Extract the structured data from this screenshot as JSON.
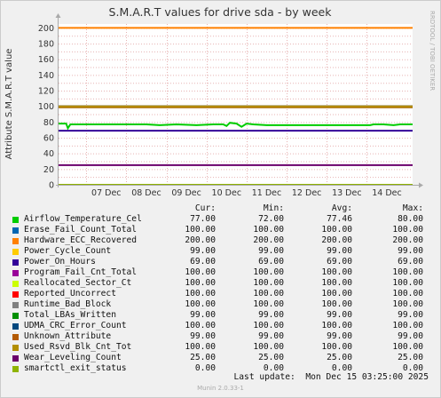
{
  "chart_data": {
    "type": "line",
    "title": "S.M.A.R.T values for drive sda - by week",
    "ylabel": "Attribute S.M.A.R.T value",
    "ylim": [
      0,
      205
    ],
    "yticks": [
      "0",
      "20",
      "40",
      "60",
      "80",
      "100",
      "120",
      "140",
      "160",
      "180",
      "200"
    ],
    "ytick_values": [
      0,
      20,
      40,
      60,
      80,
      100,
      120,
      140,
      160,
      180,
      200
    ],
    "xlim": [
      "2025-12-06 07:25",
      "2025-12-15 03:25"
    ],
    "xticks": [
      {
        "label": "07 Dec",
        "date": "2025-12-07"
      },
      {
        "label": "08 Dec",
        "date": "2025-12-08"
      },
      {
        "label": "09 Dec",
        "date": "2025-12-09"
      },
      {
        "label": "10 Dec",
        "date": "2025-12-10"
      },
      {
        "label": "11 Dec",
        "date": "2025-12-11"
      },
      {
        "label": "12 Dec",
        "date": "2025-12-12"
      },
      {
        "label": "13 Dec",
        "date": "2025-12-13"
      },
      {
        "label": "14 Dec",
        "date": "2025-12-14"
      }
    ],
    "grid": true,
    "legend_position": "bottom",
    "series": [
      {
        "name": "Airflow_Temperature_Cel",
        "color": "#00cc00",
        "points": [
          [
            "2025-12-06 07:25",
            78
          ],
          [
            "2025-12-06 12:00",
            78
          ],
          [
            "2025-12-06 13:00",
            72
          ],
          [
            "2025-12-06 14:30",
            77
          ],
          [
            "2025-12-07 12:00",
            77
          ],
          [
            "2025-12-08 12:00",
            77
          ],
          [
            "2025-12-08 20:00",
            76
          ],
          [
            "2025-12-09 06:00",
            77
          ],
          [
            "2025-12-09 18:00",
            76
          ],
          [
            "2025-12-10 04:00",
            77
          ],
          [
            "2025-12-10 10:00",
            77
          ],
          [
            "2025-12-10 12:00",
            75
          ],
          [
            "2025-12-10 14:00",
            79
          ],
          [
            "2025-12-10 18:00",
            78
          ],
          [
            "2025-12-10 21:00",
            74
          ],
          [
            "2025-12-11 00:00",
            78
          ],
          [
            "2025-12-11 04:00",
            77
          ],
          [
            "2025-12-11 12:00",
            76
          ],
          [
            "2025-12-12 12:00",
            76
          ],
          [
            "2025-12-13 12:00",
            76
          ],
          [
            "2025-12-14 02:00",
            76
          ],
          [
            "2025-12-14 04:00",
            77
          ],
          [
            "2025-12-14 10:00",
            77
          ],
          [
            "2025-12-14 16:00",
            76
          ],
          [
            "2025-12-14 20:00",
            77
          ],
          [
            "2025-12-15 03:25",
            77
          ]
        ]
      },
      {
        "name": "Erase_Fail_Count_Total",
        "color": "#0066b3",
        "constant": 100
      },
      {
        "name": "Hardware_ECC_Recovered",
        "color": "#ff8000",
        "constant": 200
      },
      {
        "name": "Power_Cycle_Count",
        "color": "#ffcc00",
        "constant": 99
      },
      {
        "name": "Power_On_Hours",
        "color": "#330099",
        "constant": 69
      },
      {
        "name": "Program_Fail_Cnt_Total",
        "color": "#990099",
        "constant": 100
      },
      {
        "name": "Reallocated_Sector_Ct",
        "color": "#ccff00",
        "constant": 100
      },
      {
        "name": "Reported_Uncorrect",
        "color": "#ff0000",
        "constant": 100
      },
      {
        "name": "Runtime_Bad_Block",
        "color": "#808080",
        "constant": 100
      },
      {
        "name": "Total_LBAs_Written",
        "color": "#008f00",
        "constant": 99
      },
      {
        "name": "UDMA_CRC_Error_Count",
        "color": "#00487d",
        "constant": 100
      },
      {
        "name": "Unknown_Attribute",
        "color": "#b35a00",
        "constant": 99
      },
      {
        "name": "Used_Rsvd_Blk_Cnt_Tot",
        "color": "#b38f00",
        "constant": 100
      },
      {
        "name": "Wear_Leveling_Count",
        "color": "#6b006b",
        "constant": 25
      },
      {
        "name": "smartctl_exit_status",
        "color": "#8fb300",
        "constant": 0
      }
    ]
  },
  "side_label": "RRDTOOL / TOBI OETIKER",
  "legend": {
    "headers": [
      "Cur:",
      "Min:",
      "Avg:",
      "Max:"
    ],
    "rows": [
      {
        "name": "Airflow_Temperature_Cel",
        "color": "#00cc00",
        "cur": "77.00",
        "min": "72.00",
        "avg": "77.46",
        "max": "80.00"
      },
      {
        "name": "Erase_Fail_Count_Total",
        "color": "#0066b3",
        "cur": "100.00",
        "min": "100.00",
        "avg": "100.00",
        "max": "100.00"
      },
      {
        "name": "Hardware_ECC_Recovered",
        "color": "#ff8000",
        "cur": "200.00",
        "min": "200.00",
        "avg": "200.00",
        "max": "200.00"
      },
      {
        "name": "Power_Cycle_Count",
        "color": "#ffcc00",
        "cur": "99.00",
        "min": "99.00",
        "avg": "99.00",
        "max": "99.00"
      },
      {
        "name": "Power_On_Hours",
        "color": "#330099",
        "cur": "69.00",
        "min": "69.00",
        "avg": "69.00",
        "max": "69.00"
      },
      {
        "name": "Program_Fail_Cnt_Total",
        "color": "#990099",
        "cur": "100.00",
        "min": "100.00",
        "avg": "100.00",
        "max": "100.00"
      },
      {
        "name": "Reallocated_Sector_Ct",
        "color": "#ccff00",
        "cur": "100.00",
        "min": "100.00",
        "avg": "100.00",
        "max": "100.00"
      },
      {
        "name": "Reported_Uncorrect",
        "color": "#ff0000",
        "cur": "100.00",
        "min": "100.00",
        "avg": "100.00",
        "max": "100.00"
      },
      {
        "name": "Runtime_Bad_Block",
        "color": "#808080",
        "cur": "100.00",
        "min": "100.00",
        "avg": "100.00",
        "max": "100.00"
      },
      {
        "name": "Total_LBAs_Written",
        "color": "#008f00",
        "cur": "99.00",
        "min": "99.00",
        "avg": "99.00",
        "max": "99.00"
      },
      {
        "name": "UDMA_CRC_Error_Count",
        "color": "#00487d",
        "cur": "100.00",
        "min": "100.00",
        "avg": "100.00",
        "max": "100.00"
      },
      {
        "name": "Unknown_Attribute",
        "color": "#b35a00",
        "cur": "99.00",
        "min": "99.00",
        "avg": "99.00",
        "max": "99.00"
      },
      {
        "name": "Used_Rsvd_Blk_Cnt_Tot",
        "color": "#b38f00",
        "cur": "100.00",
        "min": "100.00",
        "avg": "100.00",
        "max": "100.00"
      },
      {
        "name": "Wear_Leveling_Count",
        "color": "#6b006b",
        "cur": "25.00",
        "min": "25.00",
        "avg": "25.00",
        "max": "25.00"
      },
      {
        "name": "smartctl_exit_status",
        "color": "#8fb300",
        "cur": "0.00",
        "min": "0.00",
        "avg": "0.00",
        "max": "0.00"
      }
    ]
  },
  "last_update": "Last update:  Mon Dec 15 03:25:00 2025",
  "footer": "Munin 2.0.33-1"
}
